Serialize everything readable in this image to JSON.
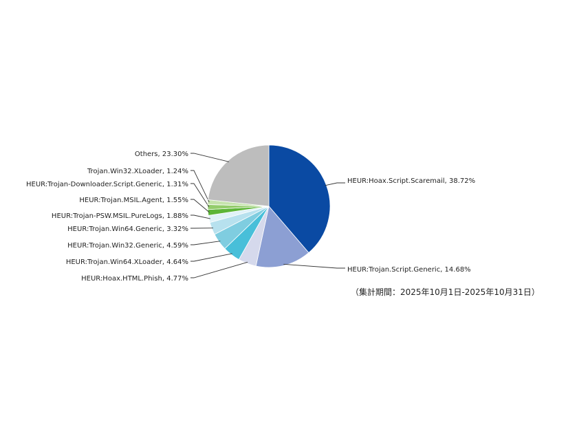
{
  "chart_data": {
    "type": "pie",
    "start": "12 o'clock, clockwise",
    "slices": [
      {
        "label": "HEUR:Hoax.Script.Scaremail",
        "value": 38.72,
        "display": "HEUR:Hoax.Script.Scaremail, 38.72%",
        "color": "#0a4aa3"
      },
      {
        "label": "HEUR:Trojan.Script.Generic",
        "value": 14.68,
        "display": "HEUR:Trojan.Script.Generic, 14.68%",
        "color": "#8c9fd3"
      },
      {
        "label": "HEUR:Hoax.HTML.Phish",
        "value": 4.77,
        "display": "HEUR:Hoax.HTML.Phish, 4.77%",
        "color": "#d5d9ec"
      },
      {
        "label": "HEUR:Trojan.Win64.XLoader",
        "value": 4.64,
        "display": "HEUR:Trojan.Win64.XLoader, 4.64%",
        "color": "#48bfd9"
      },
      {
        "label": "HEUR:Trojan.Win32.Generic",
        "value": 4.59,
        "display": "HEUR:Trojan.Win32.Generic, 4.59%",
        "color": "#7fcde0"
      },
      {
        "label": "HEUR:Trojan.Win64.Generic",
        "value": 3.32,
        "display": "HEUR:Trojan.Win64.Generic, 3.32%",
        "color": "#b7e1ee"
      },
      {
        "label": "HEUR:Trojan-PSW.MSIL.PureLogs",
        "value": 1.88,
        "display": "HEUR:Trojan-PSW.MSIL.PureLogs, 1.88%",
        "color": "#e0f2f8"
      },
      {
        "label": "HEUR:Trojan.MSIL.Agent",
        "value": 1.55,
        "display": "HEUR:Trojan.MSIL.Agent, 1.55%",
        "color": "#5db537"
      },
      {
        "label": "HEUR:Trojan-Downloader.Script.Generic",
        "value": 1.31,
        "display": "HEUR:Trojan-Downloader.Script.Generic, 1.31%",
        "color": "#93cc6b"
      },
      {
        "label": "Trojan.Win32.XLoader",
        "value": 1.24,
        "display": "Trojan.Win32.XLoader, 1.24%",
        "color": "#c5e3ac"
      },
      {
        "label": "Others",
        "value": 23.3,
        "display": "Others, 23.30%",
        "color": "#bdbdbd"
      }
    ]
  },
  "period_note": "（集計期間：2025年10月1日-2025年10月31日）"
}
